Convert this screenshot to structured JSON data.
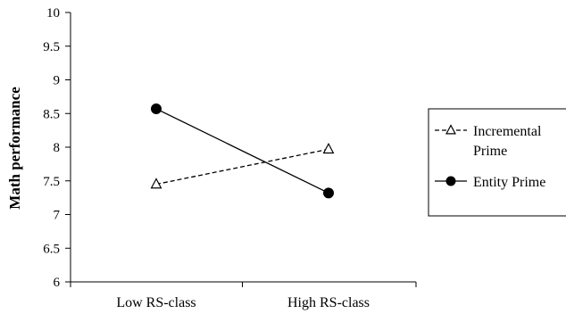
{
  "chart_data": {
    "type": "line",
    "title": "",
    "xlabel": "",
    "ylabel": "Math performance",
    "categories": [
      "Low RS-class",
      "High RS-class"
    ],
    "ylim": [
      6,
      10
    ],
    "yticks": [
      "6",
      "6.5",
      "7",
      "7.5",
      "8",
      "8.5",
      "9",
      "9.5",
      "10"
    ],
    "grid": false,
    "legend_position": "right",
    "series": [
      {
        "name": "Incremental Prime",
        "name_lines": [
          "Incremental",
          "Prime"
        ],
        "values": [
          7.45,
          7.97
        ],
        "line_style": "dashed",
        "marker": "open-triangle",
        "color": "#000000"
      },
      {
        "name": "Entity Prime",
        "name_lines": [
          "Entity Prime"
        ],
        "values": [
          8.57,
          7.32
        ],
        "line_style": "solid",
        "marker": "filled-circle",
        "color": "#000000"
      }
    ]
  }
}
